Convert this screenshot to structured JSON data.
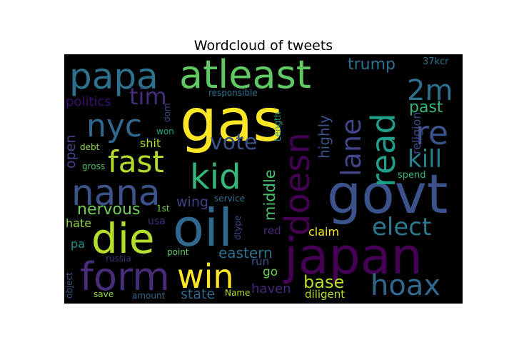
{
  "chart_data": {
    "type": "wordcloud",
    "title": "Wordcloud of tweets",
    "background": "#000000",
    "colormap": "viridis",
    "words": [
      {
        "text": "gas",
        "color": "#fde725"
      },
      {
        "text": "japan",
        "color": "#440154"
      },
      {
        "text": "oil",
        "color": "#31688e"
      },
      {
        "text": "govt",
        "color": "#3b528b"
      },
      {
        "text": "atleast",
        "color": "#5ec962"
      },
      {
        "text": "papa",
        "color": "#2c728e"
      },
      {
        "text": "form",
        "color": "#472c7a"
      },
      {
        "text": "nana",
        "color": "#3b528b"
      },
      {
        "text": "die",
        "color": "#b5de2b"
      },
      {
        "text": "win",
        "color": "#fde725"
      },
      {
        "text": "kid",
        "color": "#35b779"
      },
      {
        "text": "doesn",
        "color": "#440154"
      },
      {
        "text": "nyc",
        "color": "#31688e"
      },
      {
        "text": "fast",
        "color": "#b5de2b"
      },
      {
        "text": "read",
        "color": "#1f9e89"
      },
      {
        "text": "hoax",
        "color": "#31688e"
      },
      {
        "text": "2m",
        "color": "#2c728e"
      },
      {
        "text": "re",
        "color": "#3b528b"
      },
      {
        "text": "lane",
        "color": "#414487"
      },
      {
        "text": "elect",
        "color": "#2a788e"
      },
      {
        "text": "tim",
        "color": "#472c7a"
      },
      {
        "text": "kill",
        "color": "#26828e"
      },
      {
        "text": "vote",
        "color": "#3b528b"
      },
      {
        "text": "trump",
        "color": "#2c728e"
      },
      {
        "text": "past",
        "color": "#35b779"
      },
      {
        "text": "nervous",
        "color": "#6ece58"
      },
      {
        "text": "base",
        "color": "#b5de2b"
      },
      {
        "text": "eastern",
        "color": "#2c728e"
      },
      {
        "text": "middle",
        "color": "#4ac16d"
      },
      {
        "text": "highly",
        "color": "#3b528b"
      },
      {
        "text": "religion",
        "color": "#3e4989"
      },
      {
        "text": "politics",
        "color": "#3b0f70"
      },
      {
        "text": "open",
        "color": "#414487"
      },
      {
        "text": "shit",
        "color": "#b5de2b"
      },
      {
        "text": "wing",
        "color": "#414487"
      },
      {
        "text": "state",
        "color": "#31688e"
      },
      {
        "text": "claim",
        "color": "#fde725"
      },
      {
        "text": "haven",
        "color": "#482878"
      },
      {
        "text": "hate",
        "color": "#8fd744"
      },
      {
        "text": "red",
        "color": "#482878"
      },
      {
        "text": "go",
        "color": "#6ece58"
      },
      {
        "text": "run",
        "color": "#3b528b"
      },
      {
        "text": "usa",
        "color": "#472c7a"
      },
      {
        "text": "pa",
        "color": "#21918c"
      },
      {
        "text": "diligent",
        "color": "#b5de2b"
      },
      {
        "text": "spend",
        "color": "#35b779"
      },
      {
        "text": "37kcr",
        "color": "#2c728e"
      },
      {
        "text": "responsible",
        "color": "#2c728e"
      },
      {
        "text": "Length",
        "color": "#1f9e89"
      },
      {
        "text": "dom",
        "color": "#3e4989"
      },
      {
        "text": "won",
        "color": "#22a884"
      },
      {
        "text": "debt",
        "color": "#8fd744"
      },
      {
        "text": "gross",
        "color": "#4ac16d"
      },
      {
        "text": "1st",
        "color": "#7ad151"
      },
      {
        "text": "service",
        "color": "#2c728e"
      },
      {
        "text": "dtype",
        "color": "#3e4989"
      },
      {
        "text": "point",
        "color": "#5ec962"
      },
      {
        "text": "russia",
        "color": "#472c7a"
      },
      {
        "text": "object",
        "color": "#3b528b"
      },
      {
        "text": "save",
        "color": "#8fd744"
      },
      {
        "text": "amount",
        "color": "#31688e"
      },
      {
        "text": "Name",
        "color": "#b5de2b"
      }
    ]
  }
}
